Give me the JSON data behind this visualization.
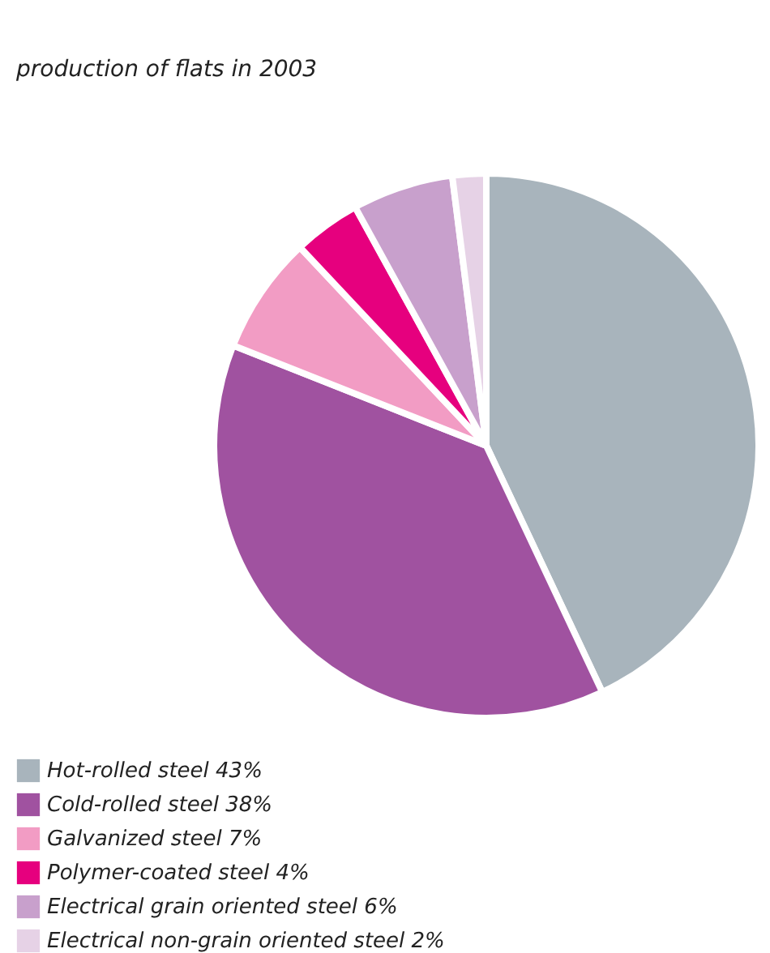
{
  "chart_data": {
    "type": "pie",
    "title": "production of flats in 2003",
    "categories": [
      "Hot-rolled steel 43%",
      "Cold-rolled steel 38%",
      "Galvanized steel 7%",
      "Polymer-coated steel 4%",
      "Electrical grain oriented steel 6%",
      "Electrical non-grain oriented steel 2%"
    ],
    "values": [
      43,
      38,
      7,
      4,
      6,
      2
    ],
    "colors": [
      "#a8b4bc",
      "#a052a0",
      "#f29cc4",
      "#e6007e",
      "#c8a0cc",
      "#e6d2e6"
    ],
    "legend": "bottom left"
  }
}
